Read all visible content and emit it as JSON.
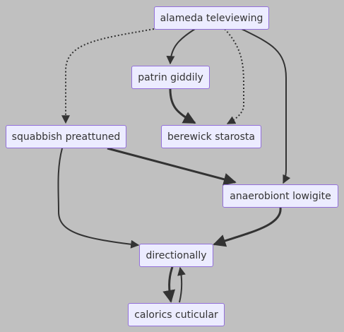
{
  "nodes": {
    "alameda": "alameda televiewing",
    "patrin": "patrin giddily",
    "squabbish": "squabbish preattuned",
    "berewick": "berewick starosta",
    "anaerobiont": "anaerobiont lowigite",
    "directionally": "directionally",
    "calorics": "calorics cuticular"
  },
  "colors": {
    "background": "#c0c0c0",
    "node_fill": "#ececff",
    "node_border": "#9370db",
    "edge": "#333333",
    "text": "#333333"
  },
  "edges": [
    {
      "from": "alameda",
      "to": "patrin",
      "style": "solid"
    },
    {
      "from": "alameda",
      "to": "squabbish",
      "style": "dotted"
    },
    {
      "from": "alameda",
      "to": "berewick",
      "style": "dotted"
    },
    {
      "from": "alameda",
      "to": "anaerobiont",
      "style": "solid"
    },
    {
      "from": "patrin",
      "to": "berewick",
      "style": "thick"
    },
    {
      "from": "squabbish",
      "to": "anaerobiont",
      "style": "thick"
    },
    {
      "from": "squabbish",
      "to": "directionally",
      "style": "solid"
    },
    {
      "from": "anaerobiont",
      "to": "directionally",
      "style": "thick"
    },
    {
      "from": "directionally",
      "to": "calorics",
      "style": "thick"
    },
    {
      "from": "calorics",
      "to": "directionally",
      "style": "solid"
    }
  ]
}
